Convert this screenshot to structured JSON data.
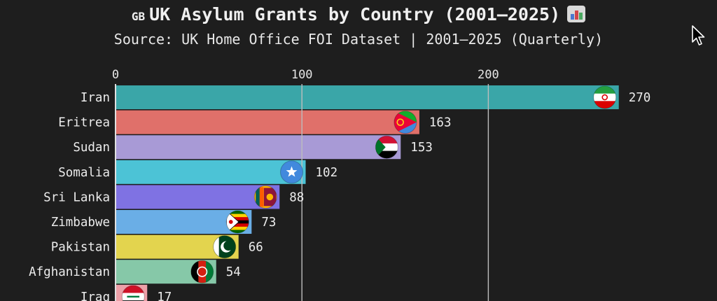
{
  "header": {
    "flag_code": "GB",
    "title": "UK Asylum Grants by Country (2001–2025)",
    "subtitle": "Source: UK Home Office FOI Dataset | 2001–2025 (Quarterly)",
    "title_icon": "bar-chart-emoji-icon"
  },
  "colors": {
    "background": "#1e1e1e",
    "gridline": "#bdbdbd",
    "text": "#ececec"
  },
  "chart_data": {
    "type": "bar",
    "orientation": "horizontal",
    "title": "UK Asylum Grants by Country (2001–2025)",
    "subtitle": "Source: UK Home Office FOI Dataset | 2001–2025 (Quarterly)",
    "x_ticks": [
      0,
      100,
      200
    ],
    "xlim": [
      0,
      280
    ],
    "categories": [
      "Iran",
      "Eritrea",
      "Sudan",
      "Somalia",
      "Sri Lanka",
      "Zimbabwe",
      "Pakistan",
      "Afghanistan",
      "Iraq"
    ],
    "values": [
      270,
      163,
      153,
      102,
      88,
      73,
      66,
      54,
      17
    ],
    "bar_colors": [
      "#3aa6a8",
      "#e0706a",
      "#a89ad6",
      "#4cc3d6",
      "#7f72e3",
      "#6aaee6",
      "#e3d44e",
      "#86c8a8",
      "#eda0a8"
    ],
    "flags": [
      "iran-flag-icon",
      "eritrea-flag-icon",
      "sudan-flag-icon",
      "somalia-flag-icon",
      "sri-lanka-flag-icon",
      "zimbabwe-flag-icon",
      "pakistan-flag-icon",
      "afghanistan-flag-icon",
      "iraq-flag-icon"
    ],
    "grid": true,
    "legend": "none"
  }
}
